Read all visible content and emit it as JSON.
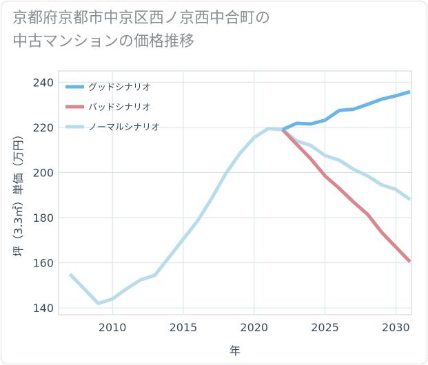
{
  "title_line1": "京都府京都市中京区西ノ京西中合町の",
  "title_line2": "中古マンションの価格推移",
  "chart_data": {
    "type": "line",
    "xlabel": "年",
    "ylabel": "坪（3.3㎡）単価（万円）",
    "xlim": [
      2006.2,
      2031.1
    ],
    "ylim": [
      137,
      245
    ],
    "xticks": [
      2010,
      2015,
      2020,
      2025,
      2030
    ],
    "yticks": [
      140,
      160,
      180,
      200,
      220,
      240
    ],
    "grid": true,
    "legend_position": "top-left",
    "series": [
      {
        "name": "グッドシナリオ",
        "color": "#6ab4ec",
        "x": [
          2022,
          2023,
          2024,
          2025,
          2026,
          2027,
          2028,
          2029,
          2030,
          2031
        ],
        "values": [
          219,
          221.8,
          221.5,
          223.2,
          227.5,
          228,
          230.2,
          232.5,
          234,
          235.8
        ]
      },
      {
        "name": "バッドシナリオ",
        "color": "#d9868d",
        "x": [
          2022,
          2023,
          2024,
          2025,
          2026,
          2027,
          2028,
          2029,
          2030,
          2031
        ],
        "values": [
          219,
          212.5,
          206,
          198.5,
          193,
          187,
          181.5,
          173.5,
          167,
          160.5
        ]
      },
      {
        "name": "ノーマルシナリオ",
        "color": "#b9dcec",
        "x": [
          2007,
          2008,
          2009,
          2010,
          2011,
          2012,
          2013,
          2014,
          2015,
          2016,
          2017,
          2018,
          2019,
          2020,
          2021,
          2022,
          2023,
          2024,
          2025,
          2026,
          2027,
          2028,
          2029,
          2030,
          2031
        ],
        "values": [
          155,
          148.5,
          142,
          144,
          148.5,
          152.5,
          154.5,
          162.5,
          170.5,
          178.5,
          188.5,
          199.5,
          208.5,
          215.5,
          219.5,
          219,
          214,
          212,
          207.5,
          205.5,
          201.5,
          198.5,
          194.5,
          192.5,
          188
        ]
      }
    ]
  }
}
